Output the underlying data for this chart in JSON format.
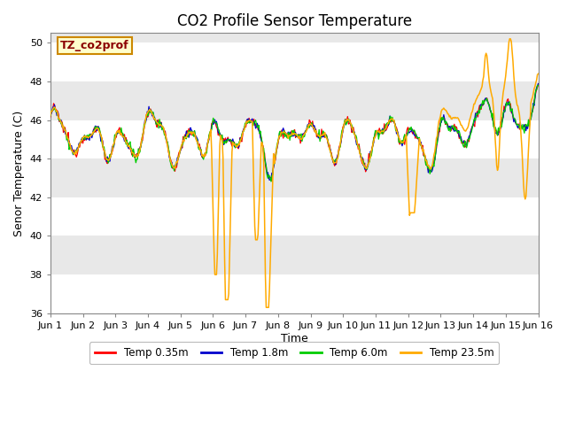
{
  "title": "CO2 Profile Sensor Temperature",
  "ylabel": "Senor Temperature (C)",
  "xlabel": "Time",
  "annotation_text": "TZ_co2prof",
  "annotation_color": "#8b0000",
  "annotation_bg": "#ffffcc",
  "annotation_border": "#cc8800",
  "ylim": [
    36,
    50.5
  ],
  "yticks": [
    36,
    38,
    40,
    42,
    44,
    46,
    48,
    50
  ],
  "legend_entries": [
    "Temp 0.35m",
    "Temp 1.8m",
    "Temp 6.0m",
    "Temp 23.5m"
  ],
  "legend_colors": [
    "#ff0000",
    "#0000cc",
    "#00cc00",
    "#ffaa00"
  ],
  "fig_bg_color": "#ffffff",
  "plot_bg_color": "#e8e8e8",
  "band_color": "#d8d8d8",
  "grid_color": "#ffffff",
  "num_points": 600,
  "xtick_labels": [
    "Jun 1",
    "Jun 2",
    "Jun 3",
    "Jun 4",
    "Jun 5",
    "Jun 6",
    "Jun 7",
    "Jun 8",
    "Jun 9",
    "Jun 10",
    "Jun 11",
    "Jun 12",
    "Jun 13",
    "Jun 14",
    "Jun 15",
    "Jun 16"
  ]
}
